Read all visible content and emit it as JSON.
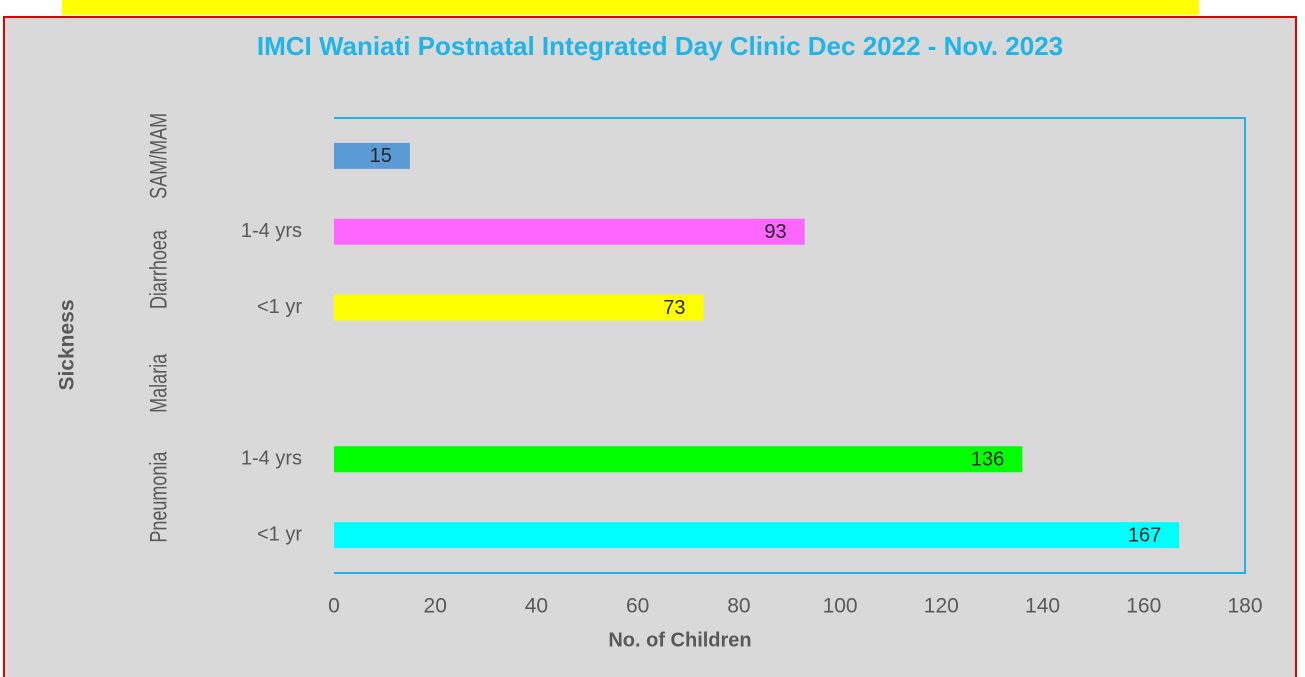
{
  "chart_data": {
    "type": "bar",
    "orientation": "horizontal",
    "title": "IMCI Waniati Postnatal Integrated Day Clinic Dec 2022 - Nov. 2023",
    "x_label": "No. of Children",
    "y_label": "Sickness",
    "groups": [
      {
        "name": "SAM/MAM",
        "categories": [
          null
        ],
        "values": [
          15
        ],
        "colors": [
          "#5b9bd5"
        ]
      },
      {
        "name": "Diarrhoea",
        "categories": [
          "1-4 yrs",
          "<1 yr"
        ],
        "values": [
          93,
          73
        ],
        "colors": [
          "#ff66ff",
          "#ffff00"
        ]
      },
      {
        "name": "Malaria",
        "categories": [
          null
        ],
        "values": [
          null
        ],
        "colors": [
          null
        ]
      },
      {
        "name": "Pneumonia",
        "categories": [
          "1-4 yrs",
          "<1 yr"
        ],
        "values": [
          136,
          167
        ],
        "colors": [
          "#00ff00",
          "#00ffff"
        ]
      }
    ],
    "xlim": [
      0,
      180
    ],
    "xticks": [
      0,
      20,
      40,
      60,
      80,
      100,
      120,
      140,
      160,
      180
    ]
  }
}
